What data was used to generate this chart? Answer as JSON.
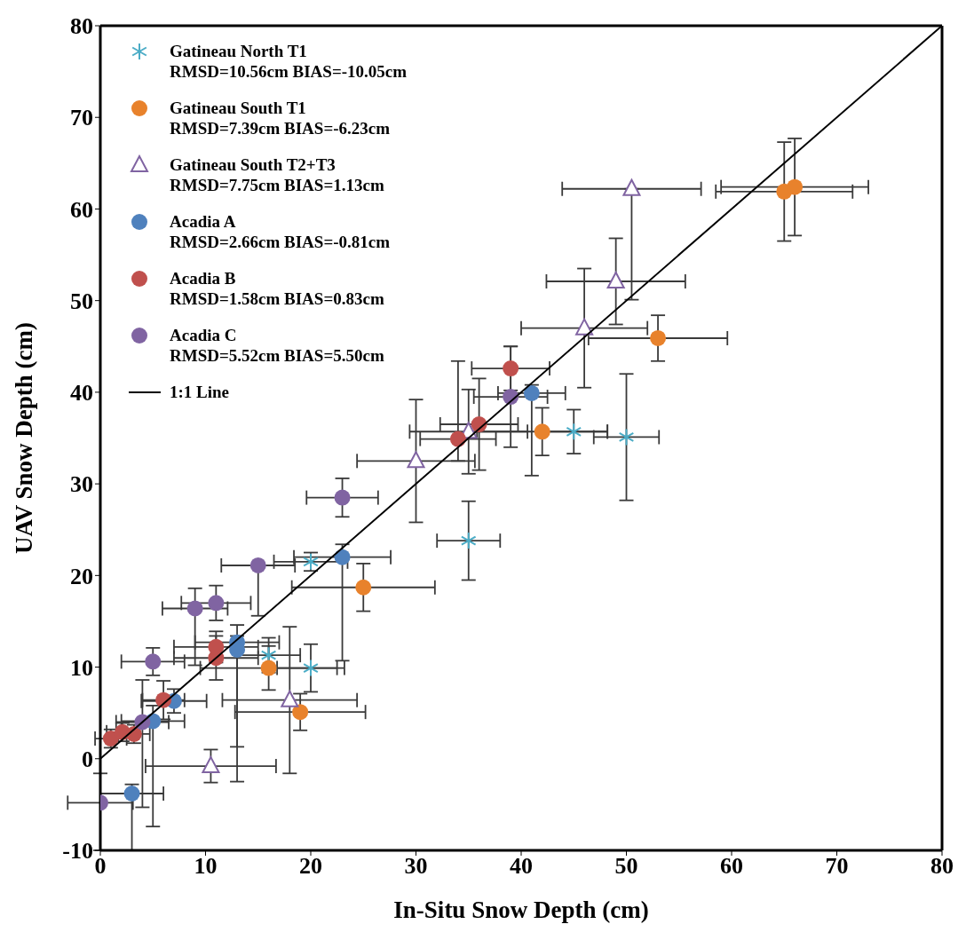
{
  "chart_data": {
    "type": "scatter",
    "xlabel": "In-Situ Snow Depth (cm)",
    "ylabel": "UAV Snow Depth (cm)",
    "xlim": [
      0,
      80
    ],
    "xticks": [
      0,
      10,
      20,
      30,
      40,
      50,
      60,
      70,
      80
    ],
    "ylim": [
      -10,
      80
    ],
    "yticks": [
      -10,
      0,
      10,
      20,
      30,
      40,
      50,
      60,
      70,
      80
    ],
    "grid": false,
    "legend": "top left",
    "series": [
      {
        "name": "Gatineau North T1\nRMSD=10.56cm BIAS=-10.05cm",
        "color": "#4bacc6",
        "marker": "cross",
        "x": [
          20,
          35,
          45,
          50,
          16,
          20
        ],
        "values": [
          21.5,
          23.8,
          35.7,
          35.1,
          11.3,
          9.9
        ],
        "xerrors": [
          3.5,
          3,
          3.2,
          3.1,
          3,
          3.2
        ],
        "errors": [
          1,
          4.3,
          2.4,
          6.9,
          1.9,
          2.6
        ]
      },
      {
        "name": "Gatineau South T1\nRMSD=7.39cm BIAS=-6.23cm",
        "color": "#e8822c",
        "marker": "circle",
        "x": [
          16,
          19,
          25,
          42,
          53,
          65,
          66
        ],
        "values": [
          9.9,
          5.1,
          18.7,
          35.7,
          45.9,
          61.9,
          62.4
        ],
        "xerrors": [
          6.5,
          6.2,
          6.8,
          6.2,
          6.6,
          6.5,
          7
        ],
        "errors": [
          2.4,
          2,
          2.6,
          2.6,
          2.5,
          5.4,
          5.3
        ]
      },
      {
        "name": "Gatineau South T2+T3\nRMSD=7.75cm BIAS=1.13cm",
        "color": "#8064a2",
        "marker": "triangle",
        "x": [
          10.5,
          18,
          30,
          35,
          46,
          49,
          50.5
        ],
        "values": [
          -0.8,
          6.4,
          32.5,
          35.7,
          47,
          52.1,
          62.2
        ],
        "xerrors": [
          6.2,
          6.4,
          5.6,
          5.6,
          6,
          6.6,
          6.6
        ],
        "errors": [
          1.8,
          8,
          6.7,
          4.6,
          6.5,
          4.7,
          [
            50.1,
            62.2
          ]
        ]
      },
      {
        "name": "Acadia A\nRMSD=2.66cm BIAS=-0.81cm",
        "color": "#4f81bd",
        "marker": "circle",
        "x": [
          3,
          5,
          7,
          13,
          13,
          23,
          41
        ],
        "values": [
          -3.8,
          4.1,
          6.3,
          12.7,
          11.9,
          22,
          39.9
        ],
        "xerrors": [
          3,
          3,
          3.1,
          4,
          null,
          4.6,
          3.2
        ],
        "errors": [
          [
            -10,
            -2.8
          ],
          [
            -7.4,
            5.8
          ],
          1.3,
          [
            1.3,
            14.6
          ],
          [
            -2.5,
            13.4
          ],
          [
            10.7,
            23.4
          ],
          [
            30.9,
            40.8
          ]
        ]
      },
      {
        "name": "Acadia B\nRMSD=1.58cm BIAS=0.83cm",
        "color": "#c0504d",
        "marker": "circle",
        "x": [
          1,
          2.1,
          3.2,
          6,
          11,
          11,
          34,
          36,
          39
        ],
        "values": [
          2.2,
          2.9,
          2.7,
          6.4,
          11,
          12.2,
          34.9,
          36.5,
          42.6
        ],
        "xerrors": [
          1.5,
          1.5,
          1.5,
          2,
          4,
          4,
          3.6,
          3.7,
          3.7
        ],
        "errors": [
          1,
          1,
          1,
          2.1,
          2.4,
          1.7,
          [
            32.5,
            43.4
          ],
          5,
          2.4
        ]
      },
      {
        "name": "Acadia C\nRMSD=5.52cm BIAS=5.50cm",
        "color": "#8064a2",
        "marker": "circle",
        "x": [
          0,
          4,
          5,
          9,
          11,
          15,
          23,
          39
        ],
        "values": [
          -4.8,
          4,
          10.6,
          16.4,
          17,
          21.1,
          28.5,
          39.5
        ],
        "xerrors": [
          3.1,
          2.5,
          3,
          3.1,
          3.3,
          3.5,
          3.4,
          3.5
        ],
        "errors": [
          [
            -10,
            -1.6
          ],
          [
            -5.3,
            8.6
          ],
          1.5,
          [
            10.2,
            18.6
          ],
          1.9,
          [
            15.6,
            21.1
          ],
          2.1,
          5.5
        ]
      },
      {
        "name": "1:1 Line",
        "type": "line",
        "color": "#000000",
        "marker": "none",
        "x": [
          0,
          80
        ],
        "values": [
          0,
          80
        ]
      }
    ]
  }
}
